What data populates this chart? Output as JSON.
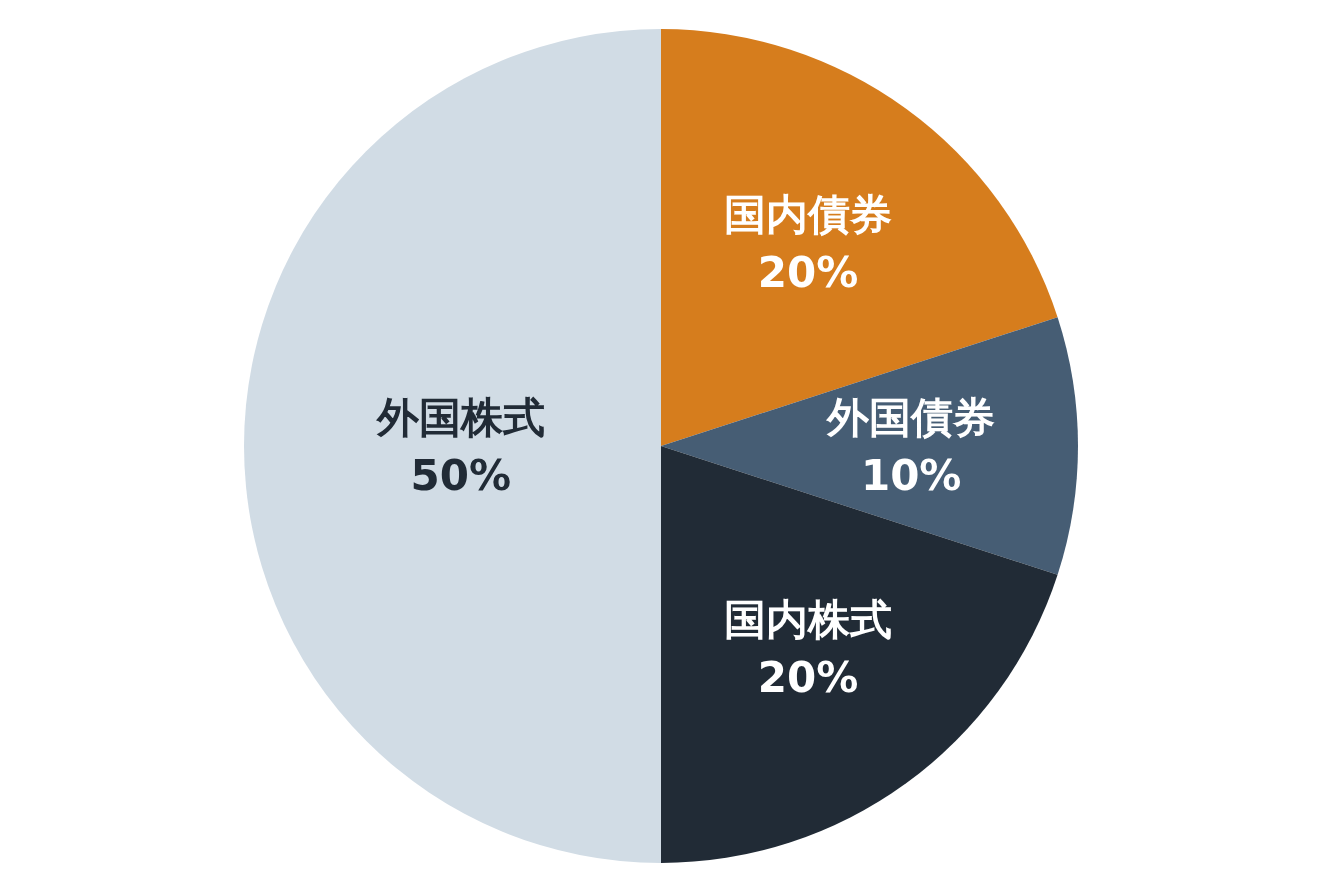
{
  "chart_data": {
    "type": "pie",
    "categories": [
      "国内債券",
      "外国債券",
      "国内株式",
      "外国株式"
    ],
    "values": [
      20,
      10,
      20,
      50
    ],
    "value_labels": [
      "20%",
      "10%",
      "20%",
      "50%"
    ],
    "colors": [
      "#d67d1d",
      "#465d74",
      "#212b36",
      "#d1dce5"
    ]
  }
}
